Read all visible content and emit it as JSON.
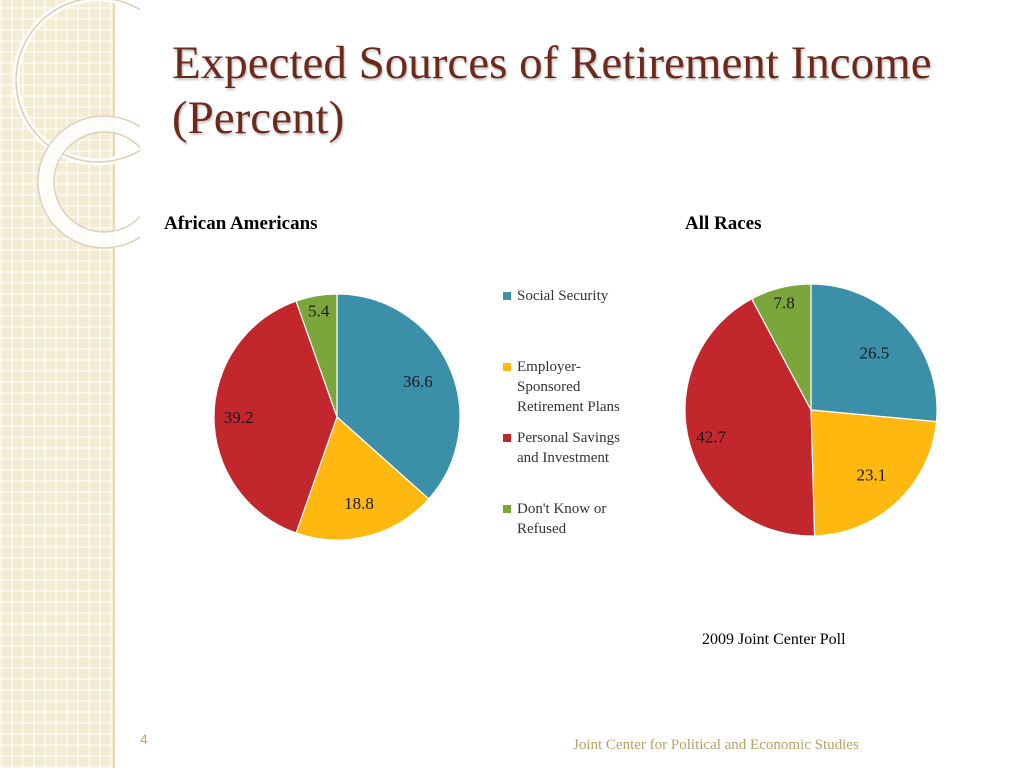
{
  "slide": {
    "title": "Expected Sources of Retirement Income (Percent)",
    "source": "2009 Joint Center Poll",
    "page_number": "4",
    "footer": "Joint Center for Political and Economic Studies"
  },
  "legend": {
    "items": [
      {
        "label": "Social Security",
        "color": "#3b8fa8"
      },
      {
        "label": "Employer-\nSponsored\nRetirement Plans",
        "color": "#ffb810"
      },
      {
        "label": "Personal Savings\nand Investment",
        "color": "#c1272d"
      },
      {
        "label": "Don't Know or\nRefused",
        "color": "#7aa63b"
      }
    ]
  },
  "chart_data": [
    {
      "type": "pie",
      "title": "African Americans",
      "categories": [
        "Social Security",
        "Employer-Sponsored Retirement Plans",
        "Personal Savings and Investment",
        "Don't Know or Refused"
      ],
      "values": [
        36.6,
        18.8,
        39.2,
        5.4
      ],
      "colors": [
        "#3b8fa8",
        "#ffb810",
        "#c1272d",
        "#7aa63b"
      ],
      "data_labels": [
        "36.6",
        "18.8",
        "39.2",
        "5.4"
      ],
      "legend_position": "right"
    },
    {
      "type": "pie",
      "title": "All Races",
      "categories": [
        "Social Security",
        "Employer-Sponsored Retirement Plans",
        "Personal Savings and Investment",
        "Don't Know or Refused"
      ],
      "values": [
        26.5,
        23.1,
        42.7,
        7.8
      ],
      "colors": [
        "#3b8fa8",
        "#ffb810",
        "#c1272d",
        "#7aa63b"
      ],
      "data_labels": [
        "26.5",
        "23.1",
        "42.7",
        "7.8"
      ],
      "legend_position": "left"
    }
  ]
}
